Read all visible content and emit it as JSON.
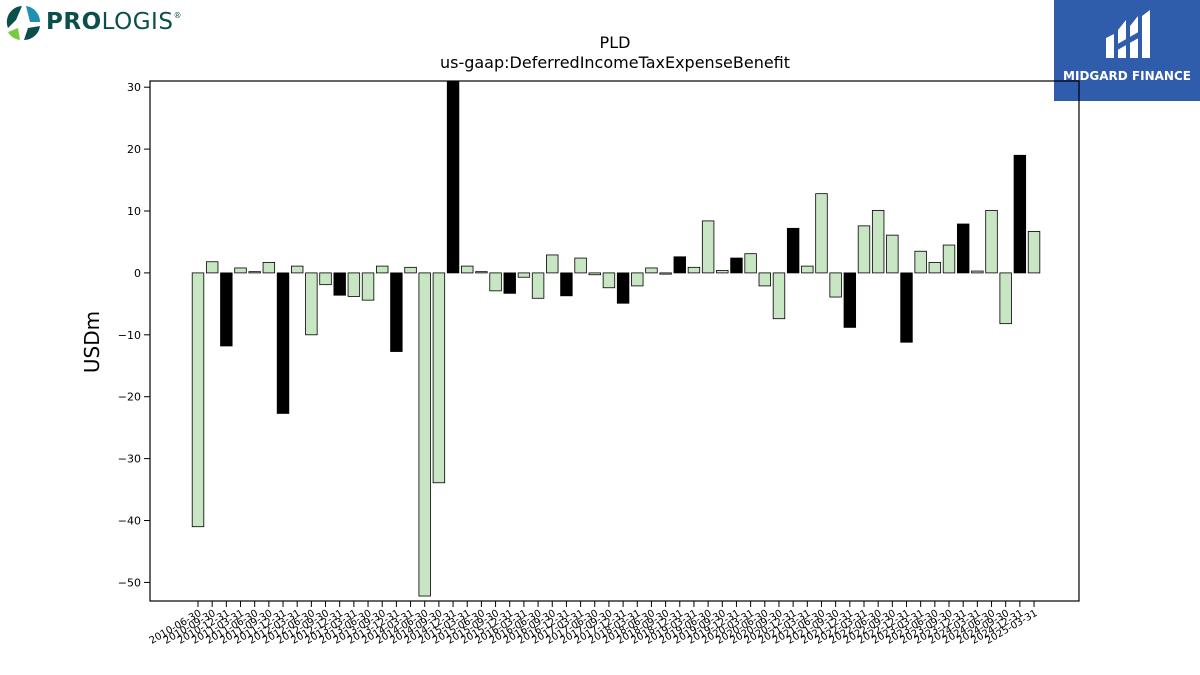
{
  "brand": {
    "logo_text_bold": "PRO",
    "logo_text_light": "LOGIS",
    "logo_mark": "®",
    "badge_text": "MIDGARD FINANCE",
    "badge_color": "#2f5cab",
    "logo_color": "#0b4f4a"
  },
  "chart_data": {
    "type": "bar",
    "title": "PLD",
    "subtitle": "us-gaap:DeferredIncomeTaxExpenseBenefit",
    "xlabel": "",
    "ylabel": "USDm",
    "ylim": [
      -53,
      31
    ],
    "yticks": [
      -50,
      -40,
      -30,
      -20,
      -10,
      0,
      10,
      20,
      30
    ],
    "grid": false,
    "colors": {
      "light": "#c8e6c4",
      "dark": "#000000",
      "edge": "#000000"
    },
    "categories": [
      "2010-06-30",
      "2010-09-30",
      "2010-12-31",
      "2011-03-31",
      "2011-06-30",
      "2011-09-30",
      "2011-12-31",
      "2012-03-31",
      "2012-06-30",
      "2012-09-30",
      "2012-12-31",
      "2013-03-31",
      "2013-06-30",
      "2013-09-30",
      "2013-12-31",
      "2014-03-31",
      "2014-06-30",
      "2014-09-30",
      "2014-12-31",
      "2015-03-31",
      "2015-06-30",
      "2015-09-30",
      "2015-12-31",
      "2016-03-31",
      "2016-06-30",
      "2016-09-30",
      "2016-12-31",
      "2017-03-31",
      "2017-06-30",
      "2017-09-30",
      "2017-12-31",
      "2018-03-31",
      "2018-06-30",
      "2018-09-30",
      "2018-12-31",
      "2019-03-31",
      "2019-06-30",
      "2019-09-30",
      "2019-12-31",
      "2020-03-31",
      "2020-06-30",
      "2020-09-30",
      "2020-12-31",
      "2021-03-31",
      "2021-06-30",
      "2021-09-30",
      "2021-12-31",
      "2022-03-31",
      "2022-06-30",
      "2022-09-30",
      "2022-12-31",
      "2023-03-31",
      "2023-06-30",
      "2023-09-30",
      "2023-12-31",
      "2024-03-31",
      "2024-06-30",
      "2024-09-30",
      "2024-12-31",
      "2025-03-31"
    ],
    "values": [
      -41.0,
      1.8,
      -11.8,
      0.8,
      0.2,
      1.7,
      -22.7,
      1.1,
      -10.0,
      -1.9,
      -3.6,
      -3.8,
      -4.4,
      1.1,
      -12.7,
      0.9,
      -52.2,
      -33.9,
      31.5,
      1.1,
      0.2,
      -2.9,
      -3.3,
      -0.7,
      -4.1,
      2.9,
      -3.7,
      2.4,
      -0.3,
      -2.4,
      -4.9,
      -2.1,
      0.8,
      -0.2,
      2.6,
      0.9,
      8.4,
      0.4,
      2.4,
      3.1,
      -2.1,
      -7.4,
      7.2,
      1.1,
      12.8,
      -3.9,
      -8.8,
      7.6,
      10.1,
      6.1,
      -11.2,
      3.5,
      1.7,
      4.5,
      7.9,
      0.3,
      10.1,
      -8.2,
      19.0,
      6.7
    ],
    "shade": [
      "light",
      "light",
      "dark",
      "light",
      "light",
      "light",
      "dark",
      "light",
      "light",
      "light",
      "dark",
      "light",
      "light",
      "light",
      "dark",
      "light",
      "light",
      "light",
      "dark",
      "light",
      "light",
      "light",
      "dark",
      "light",
      "light",
      "light",
      "dark",
      "light",
      "light",
      "light",
      "dark",
      "light",
      "light",
      "light",
      "dark",
      "light",
      "light",
      "light",
      "dark",
      "light",
      "light",
      "light",
      "dark",
      "light",
      "light",
      "light",
      "dark",
      "light",
      "light",
      "light",
      "dark",
      "light",
      "light",
      "light",
      "dark",
      "light",
      "light",
      "light",
      "dark",
      "light"
    ]
  }
}
